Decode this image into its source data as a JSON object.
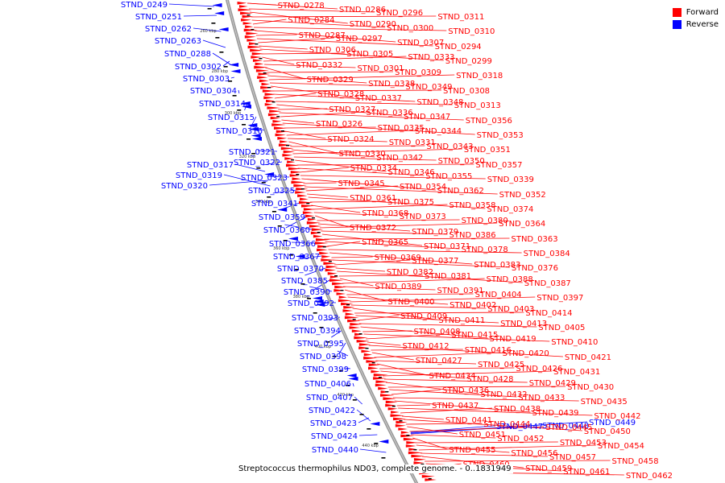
{
  "map": {
    "caption": "Streptococcus thermophilus ND03, complete genome. - 0..1831949",
    "colors": {
      "forward": "#ff0000",
      "reverse": "#0000ff",
      "backbone": "#999999",
      "tick": "#000000"
    },
    "legend": [
      {
        "label": "Forward",
        "color": "#ff0000"
      },
      {
        "label": "Reverse",
        "color": "#0000ff"
      }
    ],
    "scale_labels": [
      "260 kbp",
      "280 kbp",
      "300 kbp",
      "320 kbp",
      "340 kbp",
      "360 kbp",
      "380 kbp",
      "400 kbp",
      "420 kbp",
      "440 kbp"
    ],
    "reverse_genes": [
      "STND_0249",
      "STND_0251",
      "STND_0262",
      "STND_0263",
      "STND_0288",
      "STND_0302",
      "STND_0303",
      "STND_0304",
      "STND_0314",
      "STND_0315",
      "STND_0316",
      "STND_0321",
      "STND_0322",
      "STND_0317",
      "STND_0319",
      "STND_0320",
      "STND_0323",
      "STND_0325",
      "STND_0341",
      "STND_0359",
      "STND_0360",
      "STND_0366",
      "STND_0367",
      "STND_0370",
      "STND_0385",
      "STND_0390",
      "STND_0392",
      "STND_0393",
      "STND_0394",
      "STND_0395",
      "STND_0398",
      "STND_0399",
      "STND_0406",
      "STND_0407",
      "STND_0422",
      "STND_0423",
      "STND_0424",
      "STND_0440"
    ],
    "reverse_right_genes": [
      "STND_0447",
      "STND_0448",
      "STND_0449"
    ],
    "forward_genes": [
      "STND_0278",
      "STND_0286",
      "STND_0296",
      "STND_0311",
      "STND_0284",
      "STND_0290",
      "STND_0300",
      "STND_0310",
      "STND_0287",
      "STND_0297",
      "STND_0307",
      "STND_0294",
      "STND_0306",
      "STND_0305",
      "STND_0333",
      "STND_0299",
      "STND_0332",
      "STND_0301",
      "STND_0309",
      "STND_0318",
      "STND_0329",
      "STND_0338",
      "STND_0349",
      "STND_0308",
      "STND_0328",
      "STND_0337",
      "STND_0348",
      "STND_0313",
      "STND_0327",
      "STND_0336",
      "STND_0347",
      "STND_0356",
      "STND_0326",
      "STND_0335",
      "STND_0344",
      "STND_0353",
      "STND_0324",
      "STND_0331",
      "STND_0343",
      "STND_0351",
      "STND_0330",
      "STND_0342",
      "STND_0350",
      "STND_0357",
      "STND_0334",
      "STND_0346",
      "STND_0355",
      "STND_0339",
      "STND_0345",
      "STND_0354",
      "STND_0362",
      "STND_0352",
      "STND_0361",
      "STND_0375",
      "STND_0358",
      "STND_0374",
      "STND_0368",
      "STND_0373",
      "STND_0380",
      "STND_0364",
      "STND_0372",
      "STND_0379",
      "STND_0386",
      "STND_0363",
      "STND_0365",
      "STND_0371",
      "STND_0378",
      "STND_0384",
      "STND_0369",
      "STND_0377",
      "STND_0383",
      "STND_0376",
      "STND_0382",
      "STND_0381",
      "STND_0388",
      "STND_0387",
      "STND_0389",
      "STND_0391",
      "STND_0404",
      "STND_0397",
      "STND_0400",
      "STND_0402",
      "STND_0403",
      "STND_0414",
      "STND_0409",
      "STND_0411",
      "STND_0413",
      "STND_0405",
      "STND_0408",
      "STND_0415",
      "STND_0419",
      "STND_0410",
      "STND_0412",
      "STND_0416",
      "STND_0420",
      "STND_0421",
      "STND_0427",
      "STND_0425",
      "STND_0426",
      "STND_0431",
      "STND_0434",
      "STND_0428",
      "STND_0429",
      "STND_0430",
      "STND_0436",
      "STND_0432",
      "STND_0433",
      "STND_0435",
      "STND_0437",
      "STND_0438",
      "STND_0439",
      "STND_0442",
      "STND_0441",
      "STND_0444",
      "STND_0445",
      "STND_0450",
      "STND_0451",
      "STND_0452",
      "STND_0453",
      "STND_0454",
      "STND_0455",
      "STND_0456",
      "STND_0457",
      "STND_0458",
      "STND_0460",
      "STND_0459",
      "STND_0461",
      "STND_0462"
    ]
  }
}
